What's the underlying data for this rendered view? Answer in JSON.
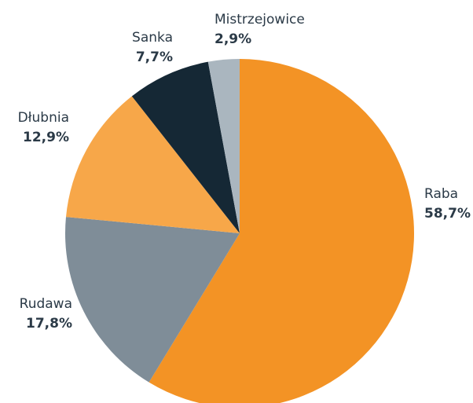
{
  "chart_data": {
    "type": "pie",
    "categories": [
      "Raba",
      "Rudawa",
      "Dłubnia",
      "Sanka",
      "Mistrzejowice"
    ],
    "values": [
      58.7,
      17.8,
      12.9,
      7.7,
      2.9
    ],
    "value_labels": [
      "58,7%",
      "17,8%",
      "12,9%",
      "7,7%",
      "2,9%"
    ],
    "colors": [
      "#f39325",
      "#7f8d98",
      "#f7a749",
      "#152835",
      "#aab6bf"
    ]
  }
}
